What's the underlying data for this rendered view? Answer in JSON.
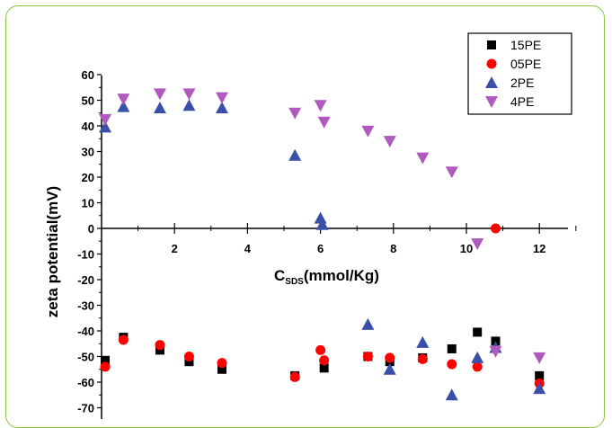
{
  "chart_data": {
    "type": "scatter",
    "title": "",
    "xlabel_main": "C",
    "xlabel_sub": "SDS",
    "xlabel_unit": "(mmol/Kg)",
    "ylabel": "zeta potential(mV)",
    "xlim": [
      0,
      13
    ],
    "ylim": [
      -75,
      60
    ],
    "x_ticks": [
      2,
      4,
      6,
      8,
      10,
      12
    ],
    "y_ticks": [
      60,
      50,
      40,
      30,
      20,
      10,
      0,
      -10,
      -20,
      -30,
      -40,
      -50,
      -60,
      -70
    ],
    "legend_position": "top-right",
    "colors": {
      "frame": "#8cc63f"
    },
    "series": [
      {
        "name": "15PE",
        "marker": "square",
        "color": "#000000",
        "x": [
          0.1,
          0.6,
          1.6,
          2.4,
          3.3,
          5.3,
          6.1,
          7.3,
          7.9,
          8.8,
          9.6,
          10.3,
          10.8,
          12.0
        ],
        "y": [
          -51.5,
          -42.5,
          -47.5,
          -52,
          -55,
          -57.5,
          -54.5,
          -50,
          -52,
          -50.5,
          -47,
          -40.5,
          -44,
          -57.5
        ]
      },
      {
        "name": "05PE",
        "marker": "circle",
        "color": "#ff0000",
        "x": [
          0.1,
          0.6,
          1.6,
          2.4,
          3.3,
          5.3,
          6.0,
          6.1,
          7.3,
          7.9,
          8.8,
          9.6,
          10.3,
          10.8,
          12.0
        ],
        "y": [
          -54,
          -43.5,
          -45.5,
          -50,
          -52.5,
          -58,
          -47.5,
          -51.5,
          -50,
          -50.5,
          -51,
          -53,
          -54,
          0,
          -60.5
        ]
      },
      {
        "name": "2PE",
        "marker": "triangle-up",
        "color": "#3a50a8",
        "x": [
          0.1,
          0.6,
          1.6,
          2.4,
          3.3,
          5.3,
          6.0,
          6.05,
          7.3,
          7.9,
          8.8,
          9.6,
          10.3,
          10.8,
          12.0
        ],
        "y": [
          39.5,
          47.5,
          47,
          48,
          47,
          28.5,
          4,
          1.5,
          -37.5,
          -55,
          -44.5,
          -65,
          -50.5,
          -46.5,
          -62.5
        ]
      },
      {
        "name": "4PE",
        "marker": "triangle-down",
        "color": "#b05ac0",
        "x": [
          0.1,
          0.6,
          1.6,
          2.4,
          3.3,
          5.3,
          6.0,
          6.1,
          7.3,
          7.9,
          8.8,
          9.6,
          10.3,
          10.8,
          12.0
        ],
        "y": [
          42.5,
          50.5,
          52.5,
          52.5,
          51,
          45,
          48,
          41.5,
          38,
          34,
          27.5,
          22,
          -6,
          -48,
          -50.5
        ]
      }
    ]
  }
}
